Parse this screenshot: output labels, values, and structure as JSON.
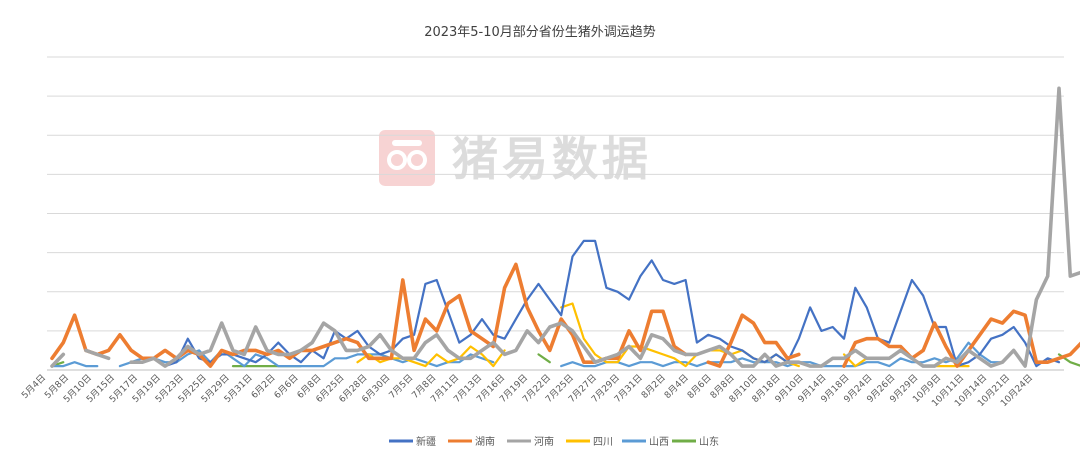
{
  "watermark": {
    "text": "猪易数据",
    "icon": "pig-snout-logo-icon",
    "color": "#f4c4c4"
  },
  "chart_data": {
    "type": "line",
    "title": "2023年5-10月部分省份生猪外调运趋势",
    "xlabel": "",
    "ylabel": "",
    "ylim": [
      0,
      8
    ],
    "grid": true,
    "legend_position": "bottom",
    "tick_labels": [
      "5月4日",
      "5月8日",
      "5月10日",
      "5月15日",
      "5月17日",
      "5月19日",
      "5月23日",
      "5月25日",
      "5月29日",
      "5月31日",
      "6月2日",
      "6月6日",
      "6月8日",
      "6月25日",
      "6月28日",
      "6月30日",
      "7月5日",
      "7月8日",
      "7月11日",
      "7月13日",
      "7月16日",
      "7月19日",
      "7月22日",
      "7月25日",
      "7月27日",
      "7月29日",
      "7月31日",
      "8月2日",
      "8月4日",
      "8月6日",
      "8月8日",
      "8月10日",
      "8月18日",
      "9月10日",
      "9月14日",
      "9月18日",
      "9月24日",
      "9月26日",
      "9月29日",
      "10月9日",
      "10月11日",
      "10月14日",
      "10月21日",
      "10月24日"
    ],
    "series": [
      {
        "name": "新疆",
        "color": "#4472C4",
        "values": [
          null,
          null,
          null,
          null,
          null,
          null,
          null,
          null,
          null,
          null,
          0.1,
          0.2,
          0.8,
          0.3,
          0.2,
          0.4,
          0.4,
          0.3,
          0.2,
          0.4,
          0.7,
          0.4,
          0.2,
          0.5,
          0.3,
          1.0,
          0.8,
          1.0,
          0.6,
          0.4,
          0.5,
          0.8,
          0.9,
          2.2,
          2.3,
          1.5,
          0.7,
          0.9,
          1.3,
          0.9,
          0.8,
          1.3,
          1.8,
          2.2,
          1.8,
          1.4,
          2.9,
          3.3,
          3.3,
          2.1,
          2.0,
          1.8,
          2.4,
          2.8,
          2.3,
          2.2,
          2.3,
          0.7,
          0.9,
          0.8,
          0.6,
          0.5,
          0.3,
          0.2,
          0.4,
          0.2,
          0.8,
          1.6,
          1.0,
          1.1,
          0.8,
          2.1,
          1.6,
          0.8,
          0.7,
          1.5,
          2.3,
          1.9,
          1.1,
          1.1,
          0.1,
          0.2,
          0.4,
          0.8,
          0.9,
          1.1,
          0.7,
          0.1,
          0.3,
          0.2
        ]
      },
      {
        "name": "湖南",
        "color": "#ED7D31",
        "values": [
          0.3,
          0.7,
          1.4,
          0.5,
          0.4,
          0.5,
          0.9,
          0.5,
          0.3,
          0.3,
          0.5,
          0.3,
          0.5,
          0.4,
          0.1,
          0.5,
          0.4,
          0.5,
          0.5,
          0.4,
          0.5,
          0.3,
          0.5,
          0.5,
          0.6,
          0.7,
          0.8,
          0.7,
          0.3,
          0.3,
          0.3,
          2.3,
          0.5,
          1.3,
          1.0,
          1.7,
          1.9,
          1.0,
          0.8,
          0.6,
          2.1,
          2.7,
          1.6,
          1.0,
          0.5,
          1.3,
          0.9,
          0.2,
          0.2,
          0.3,
          0.3,
          1.0,
          0.5,
          1.5,
          1.5,
          0.6,
          0.4,
          null,
          0.2,
          0.1,
          0.7,
          1.4,
          1.2,
          0.7,
          0.7,
          0.3,
          0.4,
          null,
          null,
          null,
          0.1,
          0.7,
          0.8,
          0.8,
          0.6,
          0.6,
          0.3,
          0.5,
          1.2,
          0.6,
          0.1,
          0.5,
          0.9,
          1.3,
          1.2,
          1.5,
          1.4,
          0.2,
          0.2,
          0.3,
          0.4,
          0.7
        ]
      },
      {
        "name": "河南",
        "color": "#A5A5A5",
        "values": [
          0.1,
          0.4,
          null,
          0.5,
          0.4,
          0.3,
          null,
          0.2,
          0.2,
          0.3,
          0.1,
          0.3,
          0.6,
          0.4,
          0.5,
          1.2,
          0.5,
          0.4,
          1.1,
          0.5,
          0.4,
          0.4,
          0.5,
          0.7,
          1.2,
          1.0,
          0.5,
          0.5,
          0.6,
          0.9,
          0.5,
          0.3,
          0.3,
          0.7,
          0.9,
          0.5,
          0.3,
          0.3,
          0.5,
          0.7,
          0.4,
          0.5,
          1.0,
          0.7,
          1.1,
          1.2,
          1.0,
          0.6,
          0.2,
          0.3,
          0.4,
          0.6,
          0.3,
          0.9,
          0.8,
          0.5,
          0.4,
          0.4,
          0.5,
          0.6,
          0.4,
          0.1,
          0.1,
          0.4,
          0.1,
          0.2,
          0.2,
          0.1,
          0.1,
          0.3,
          0.3,
          0.5,
          0.3,
          0.3,
          0.3,
          0.5,
          0.3,
          0.1,
          0.1,
          0.3,
          0.2,
          0.5,
          0.3,
          0.1,
          0.2,
          0.5,
          0.1,
          1.8,
          2.4,
          7.2,
          2.4,
          2.5
        ]
      },
      {
        "name": "四川",
        "color": "#FFC000",
        "values": [
          null,
          null,
          null,
          null,
          null,
          null,
          null,
          null,
          null,
          null,
          null,
          null,
          null,
          null,
          null,
          null,
          null,
          null,
          null,
          null,
          null,
          null,
          null,
          null,
          null,
          null,
          null,
          0.2,
          0.4,
          0.2,
          0.3,
          0.3,
          0.2,
          0.1,
          0.4,
          0.2,
          0.3,
          0.6,
          0.4,
          0.1,
          0.5,
          null,
          null,
          null,
          null,
          1.6,
          1.7,
          0.8,
          0.4,
          0.2,
          0.2,
          0.6,
          0.6,
          0.5,
          0.4,
          0.3,
          0.1,
          0.4,
          0.5,
          0.5,
          0.4,
          0.5,
          0.3,
          0.2,
          0.4,
          0.2,
          0.1,
          null,
          null,
          null,
          0.4,
          0.1,
          0.3,
          null,
          null,
          null,
          null,
          null,
          0.1,
          0.1,
          0.1,
          0.1,
          null,
          null,
          null,
          null,
          null,
          null,
          null,
          null,
          null,
          null
        ]
      },
      {
        "name": "山西",
        "color": "#5B9BD5",
        "values": [
          0.1,
          0.1,
          0.2,
          0.1,
          0.1,
          null,
          0.1,
          0.2,
          0.3,
          0.3,
          0.2,
          0.2,
          0.4,
          0.5,
          0.2,
          0.5,
          0.3,
          0.1,
          0.4,
          0.3,
          0.1,
          0.1,
          0.1,
          0.1,
          0.1,
          0.3,
          0.3,
          0.4,
          0.4,
          0.4,
          0.3,
          0.2,
          0.3,
          0.2,
          0.1,
          0.2,
          0.2,
          0.4,
          0.3,
          0.2,
          null,
          0.1,
          null,
          null,
          null,
          0.1,
          0.2,
          0.1,
          0.1,
          0.2,
          0.2,
          0.1,
          0.2,
          0.2,
          0.1,
          0.2,
          0.2,
          0.1,
          0.2,
          0.2,
          0.2,
          0.3,
          0.2,
          0.2,
          0.2,
          0.1,
          0.2,
          0.2,
          0.1,
          0.1,
          0.1,
          0.1,
          0.2,
          0.2,
          0.1,
          0.3,
          0.2,
          0.2,
          0.3,
          0.2,
          0.3,
          0.7,
          0.4,
          0.2,
          0.2,
          null,
          0.1,
          null,
          null,
          null,
          null,
          null
        ]
      },
      {
        "name": "山东",
        "color": "#70AD47",
        "values": [
          0.1,
          0.2,
          null,
          null,
          null,
          null,
          null,
          null,
          null,
          null,
          null,
          null,
          null,
          null,
          null,
          null,
          0.1,
          0.1,
          0.1,
          0.1,
          0.1,
          0.1,
          0.1,
          null,
          null,
          null,
          null,
          null,
          null,
          null,
          null,
          null,
          null,
          null,
          null,
          null,
          null,
          null,
          null,
          null,
          null,
          null,
          null,
          0.4,
          0.2,
          null,
          null,
          null,
          null,
          null,
          null,
          null,
          null,
          null,
          null,
          null,
          null,
          null,
          null,
          null,
          null,
          null,
          null,
          null,
          null,
          null,
          null,
          null,
          null,
          null,
          null,
          null,
          null,
          null,
          null,
          null,
          null,
          null,
          null,
          0.6,
          0.1,
          null,
          null,
          null,
          null,
          null,
          null,
          null,
          null,
          0.4,
          0.2,
          0.1
        ]
      }
    ]
  }
}
